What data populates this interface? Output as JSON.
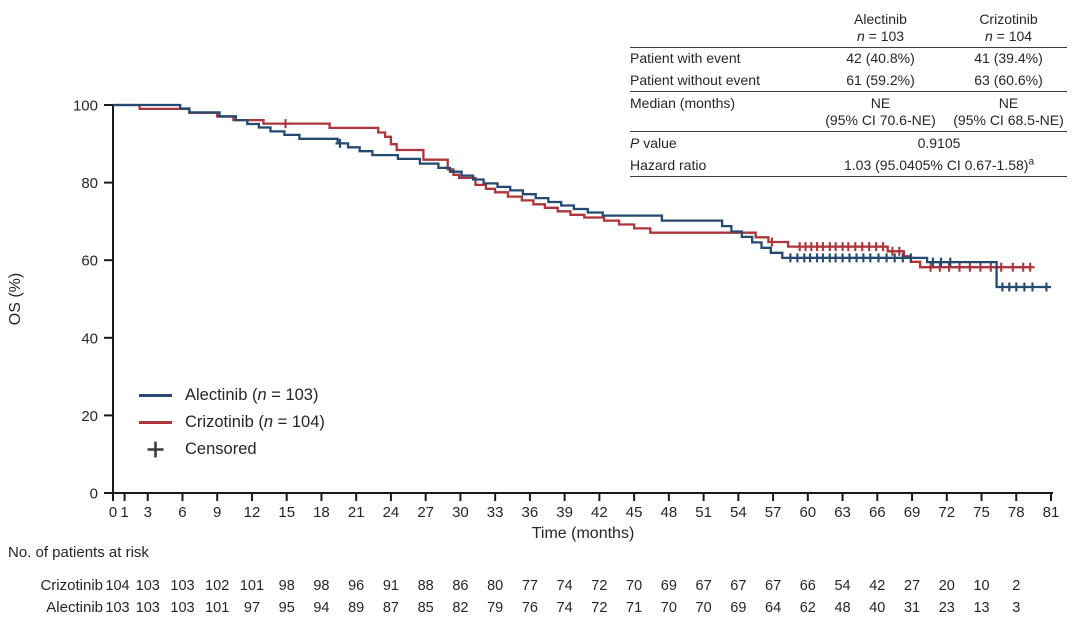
{
  "figure": {
    "y_axis_label": "OS (%)",
    "x_axis_label": "Time (months)"
  },
  "stats_table": {
    "columns": [
      {
        "name": "Alectinib",
        "n_italic": "n",
        "n_rest": " = 103"
      },
      {
        "name": "Crizotinib",
        "n_italic": "n",
        "n_rest": " = 104"
      }
    ],
    "rows": {
      "with_event": {
        "label": "Patient with event",
        "alectinib": "42 (40.8%)",
        "crizotinib": "41 (39.4%)"
      },
      "without_event": {
        "label": "Patient without event",
        "alectinib": "61 (59.2%)",
        "crizotinib": "63 (60.6%)"
      },
      "median": {
        "label": "Median (months)",
        "alectinib_line1": "NE",
        "alectinib_line2": "(95% CI 70.6-NE)",
        "crizotinib_line1": "NE",
        "crizotinib_line2": "(95% CI 68.5-NE)"
      },
      "p_value": {
        "label_italic": "P",
        "label_rest": " value",
        "value": "0.9105"
      },
      "hazard_ratio": {
        "label": "Hazard ratio",
        "value": "1.03 (95.0405% CI 0.67-1.58)",
        "superscript": "a"
      }
    }
  },
  "legend": {
    "items": [
      {
        "pre": "Alectinib (",
        "n_italic": "n",
        "post": " = 103)"
      },
      {
        "pre": "Crizotinib (",
        "n_italic": "n",
        "post": " = 104)"
      },
      {
        "label": "Censored"
      }
    ]
  },
  "chart_data": {
    "type": "line",
    "subtype": "kaplan-meier-step",
    "xlabel": "Time (months)",
    "ylabel": "OS (%)",
    "xlim": [
      0,
      81
    ],
    "ylim": [
      0,
      100
    ],
    "x_ticks": [
      0,
      1,
      3,
      6,
      9,
      12,
      15,
      18,
      21,
      24,
      27,
      30,
      33,
      36,
      39,
      42,
      45,
      48,
      51,
      54,
      57,
      60,
      63,
      66,
      69,
      72,
      75,
      78,
      81
    ],
    "y_ticks": [
      0,
      20,
      40,
      60,
      80,
      100
    ],
    "grid": false,
    "legend_position": "lower-left",
    "axis_color": "#1a1a1a",
    "series": [
      {
        "name": "Alectinib",
        "n": 103,
        "color": "#254a72",
        "steps": [
          [
            0,
            100
          ],
          [
            5.8,
            99.1
          ],
          [
            6.6,
            98.1
          ],
          [
            9.2,
            97.1
          ],
          [
            10.6,
            96.1
          ],
          [
            11.6,
            95.1
          ],
          [
            12.6,
            94.2
          ],
          [
            13.6,
            93.2
          ],
          [
            14.8,
            92.3
          ],
          [
            16.1,
            91.3
          ],
          [
            19.4,
            90.1
          ],
          [
            20.3,
            89.1
          ],
          [
            21.3,
            88.1
          ],
          [
            22.4,
            87.1
          ],
          [
            24.6,
            86.1
          ],
          [
            26.5,
            84.9
          ],
          [
            28.1,
            83.8
          ],
          [
            29.1,
            82.8
          ],
          [
            30.1,
            81.8
          ],
          [
            31.1,
            80.8
          ],
          [
            32,
            79.8
          ],
          [
            33.2,
            78.9
          ],
          [
            34.3,
            78
          ],
          [
            35.4,
            77
          ],
          [
            36.5,
            76
          ],
          [
            37.6,
            75
          ],
          [
            38.7,
            74.1
          ],
          [
            39.8,
            73.2
          ],
          [
            41,
            72.3
          ],
          [
            42.3,
            71.5
          ],
          [
            47.4,
            70.2
          ],
          [
            52.6,
            68.8
          ],
          [
            53.4,
            67.4
          ],
          [
            54.3,
            66
          ],
          [
            55.2,
            64.6
          ],
          [
            56,
            63.2
          ],
          [
            56.8,
            61.9
          ],
          [
            57.8,
            60.6
          ],
          [
            70.3,
            59.5
          ],
          [
            76.3,
            53.1
          ],
          [
            81,
            53.1
          ]
        ],
        "censors": [
          [
            19.6,
            90.1
          ],
          [
            58.5,
            60.6
          ],
          [
            59.1,
            60.6
          ],
          [
            59.7,
            60.6
          ],
          [
            60.2,
            60.6
          ],
          [
            60.8,
            60.6
          ],
          [
            61.3,
            60.6
          ],
          [
            61.9,
            60.6
          ],
          [
            62.4,
            60.6
          ],
          [
            63,
            60.6
          ],
          [
            63.6,
            60.6
          ],
          [
            64.2,
            60.6
          ],
          [
            64.8,
            60.6
          ],
          [
            65.4,
            60.6
          ],
          [
            66.1,
            60.6
          ],
          [
            66.8,
            60.6
          ],
          [
            67.5,
            60.6
          ],
          [
            68.2,
            60.6
          ],
          [
            68.9,
            60.6
          ],
          [
            70.8,
            59.5
          ],
          [
            71.5,
            59.5
          ],
          [
            72.3,
            59.5
          ],
          [
            76.8,
            53.1
          ],
          [
            77.4,
            53.1
          ],
          [
            78,
            53.1
          ],
          [
            78.7,
            53.1
          ],
          [
            79.4,
            53.1
          ],
          [
            80.6,
            53.1
          ]
        ]
      },
      {
        "name": "Crizotinib",
        "n": 104,
        "color": "#ae353c",
        "steps": [
          [
            0,
            100
          ],
          [
            2.3,
            99
          ],
          [
            6.6,
            98
          ],
          [
            9,
            97
          ],
          [
            10.4,
            96.1
          ],
          [
            13,
            95.2
          ],
          [
            18.7,
            94.1
          ],
          [
            22.9,
            92.9
          ],
          [
            23.5,
            91.8
          ],
          [
            24,
            89.9
          ],
          [
            24.5,
            88.4
          ],
          [
            26.8,
            85.9
          ],
          [
            28.9,
            83.4
          ],
          [
            29.4,
            82
          ],
          [
            29.9,
            81.2
          ],
          [
            31.3,
            79.4
          ],
          [
            32.2,
            78.4
          ],
          [
            33,
            77.5
          ],
          [
            34.1,
            76.4
          ],
          [
            35.3,
            75.4
          ],
          [
            36.3,
            74.4
          ],
          [
            37.3,
            73.5
          ],
          [
            38.4,
            72.6
          ],
          [
            39.5,
            71.7
          ],
          [
            40.7,
            71
          ],
          [
            42.4,
            70.2
          ],
          [
            43.7,
            69.2
          ],
          [
            45,
            68.2
          ],
          [
            46.4,
            67.1
          ],
          [
            55.5,
            65.9
          ],
          [
            56.6,
            64.7
          ],
          [
            58.3,
            63.5
          ],
          [
            66.9,
            62.3
          ],
          [
            68.3,
            61
          ],
          [
            68.9,
            59.6
          ],
          [
            69.7,
            58.2
          ],
          [
            79.3,
            58.2
          ]
        ],
        "censors": [
          [
            14.9,
            95.2
          ],
          [
            56.9,
            64.7
          ],
          [
            59.3,
            63.5
          ],
          [
            59.8,
            63.5
          ],
          [
            60.3,
            63.5
          ],
          [
            60.8,
            63.5
          ],
          [
            61.3,
            63.5
          ],
          [
            61.9,
            63.5
          ],
          [
            62.4,
            63.5
          ],
          [
            63,
            63.5
          ],
          [
            63.5,
            63.5
          ],
          [
            64.1,
            63.5
          ],
          [
            64.7,
            63.5
          ],
          [
            65.3,
            63.5
          ],
          [
            65.9,
            63.5
          ],
          [
            66.5,
            63.5
          ],
          [
            67.3,
            62.3
          ],
          [
            67.9,
            62.3
          ],
          [
            70.6,
            58.2
          ],
          [
            71.4,
            58.2
          ],
          [
            72.2,
            58.2
          ],
          [
            73.1,
            58.2
          ],
          [
            74,
            58.2
          ],
          [
            74.9,
            58.2
          ],
          [
            75.8,
            58.2
          ],
          [
            76.7,
            58.2
          ],
          [
            77.7,
            58.2
          ],
          [
            78.6,
            58.2
          ],
          [
            79.2,
            58.2
          ]
        ]
      }
    ],
    "risk_table": {
      "title": "No. of patients at risk",
      "times": [
        0,
        3,
        6,
        9,
        12,
        15,
        18,
        21,
        24,
        27,
        30,
        33,
        36,
        39,
        42,
        45,
        48,
        51,
        54,
        57,
        60,
        63,
        66,
        69,
        72,
        75,
        78
      ],
      "rows": [
        {
          "label": "Crizotinib",
          "counts": [
            104,
            103,
            103,
            102,
            101,
            98,
            98,
            96,
            91,
            88,
            86,
            80,
            77,
            74,
            72,
            70,
            69,
            67,
            67,
            67,
            66,
            54,
            42,
            27,
            20,
            10,
            2
          ]
        },
        {
          "label": "Alectinib",
          "counts": [
            103,
            103,
            103,
            101,
            97,
            95,
            94,
            89,
            87,
            85,
            82,
            79,
            76,
            74,
            72,
            71,
            70,
            70,
            69,
            64,
            62,
            48,
            40,
            31,
            23,
            13,
            3
          ]
        }
      ]
    }
  }
}
